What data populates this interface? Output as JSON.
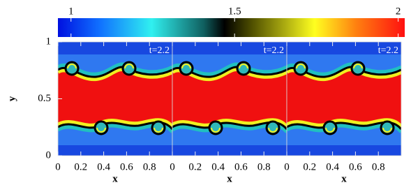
{
  "colorbar": {
    "lim": [
      0.96,
      2.02
    ],
    "ticks": [
      1,
      1.5,
      2
    ]
  },
  "chart_data": [
    {
      "type": "heatmap",
      "annotation": "t=2.2",
      "xlabel": "x",
      "ylabel": "y",
      "xlim": [
        0,
        1
      ],
      "ylim": [
        0,
        1
      ],
      "xticks": [
        0,
        0.2,
        0.4,
        0.6,
        0.8
      ],
      "yticks": [
        0,
        0.5,
        1
      ]
    },
    {
      "type": "heatmap",
      "annotation": "t=2.2",
      "xlabel": "x",
      "xlim": [
        0,
        1
      ],
      "ylim": [
        0,
        1
      ],
      "xticks": [
        0,
        0.2,
        0.4,
        0.6,
        0.8
      ]
    },
    {
      "type": "heatmap",
      "annotation": "t=2.2",
      "xlabel": "x",
      "xlim": [
        0,
        1
      ],
      "ylim": [
        0,
        1
      ],
      "xticks": [
        0,
        0.2,
        0.4,
        0.6,
        0.8
      ]
    }
  ]
}
